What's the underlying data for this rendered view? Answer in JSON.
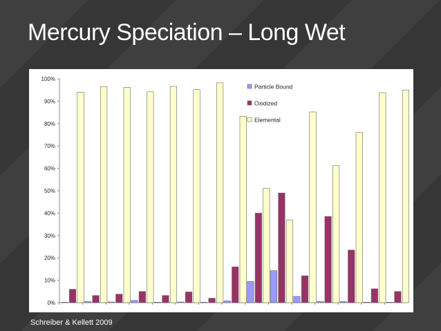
{
  "slide": {
    "title": "Mercury Speciation – Long Wet",
    "source": "Schreiber & Kellett 2009"
  },
  "colors": {
    "particle_bound": "#9999ff",
    "oxidized": "#993366",
    "elemental": "#ffffcc",
    "elemental_stroke": "#666666"
  },
  "chart_data": {
    "type": "bar",
    "title": "",
    "xlabel": "",
    "ylabel": "",
    "ylim": [
      0,
      100
    ],
    "y_ticks": [
      "0%",
      "10%",
      "20%",
      "30%",
      "40%",
      "50%",
      "60%",
      "70%",
      "80%",
      "90%",
      "100%"
    ],
    "categories": [
      "",
      "",
      "",
      "",
      "",
      "",
      "",
      "",
      "",
      "",
      "",
      "",
      "",
      "",
      ""
    ],
    "legend_position": "top-right",
    "grid": false,
    "series": [
      {
        "name": "Particle Bound",
        "values": [
          0.2,
          0.5,
          0.3,
          1.0,
          0.2,
          0.3,
          0.2,
          0.8,
          9.5,
          14.3,
          2.8,
          0.5,
          0.5,
          0.2,
          0.2
        ]
      },
      {
        "name": "Oxidized",
        "values": [
          6.0,
          3.2,
          3.8,
          5.0,
          3.2,
          4.8,
          2.0,
          16.0,
          40.0,
          49.0,
          12.0,
          38.5,
          23.5,
          6.2,
          5.0
        ]
      },
      {
        "name": "Elemental",
        "values": [
          94.0,
          96.5,
          96.2,
          94.2,
          96.6,
          95.2,
          98.2,
          83.2,
          51.0,
          37.0,
          85.2,
          61.2,
          76.0,
          93.8,
          95.0
        ]
      }
    ]
  }
}
